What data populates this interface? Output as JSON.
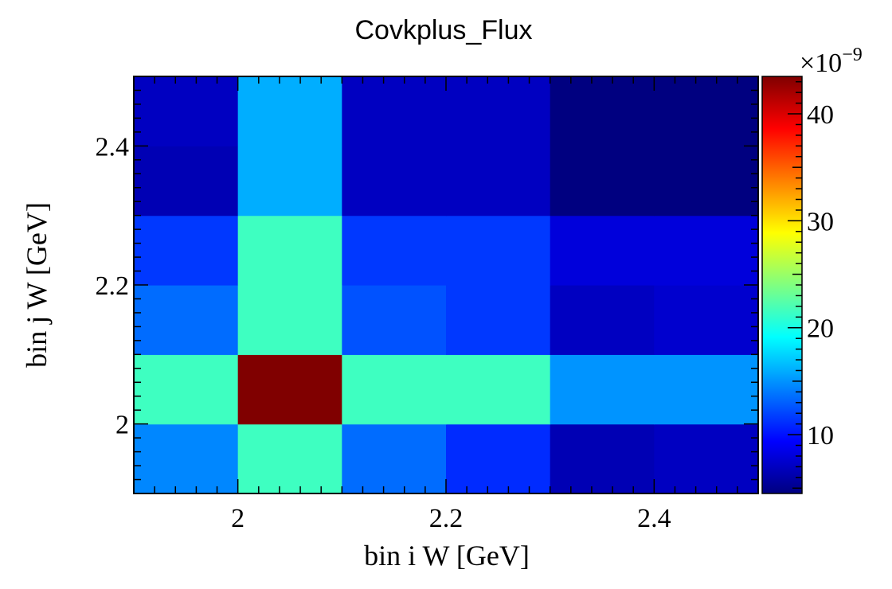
{
  "chart_data": {
    "type": "heatmap",
    "title": "Covkplus_Flux",
    "xlabel": "bin i W [GeV]",
    "ylabel": "bin j W [GeV]",
    "x_edges": [
      1.9,
      2.0,
      2.1,
      2.2,
      2.3,
      2.4,
      2.5
    ],
    "y_edges": [
      1.9,
      2.0,
      2.1,
      2.2,
      2.3,
      2.4,
      2.5
    ],
    "xlim": [
      1.9,
      2.5
    ],
    "ylim": [
      1.9,
      2.5
    ],
    "x_ticks": [
      2.0,
      2.2,
      2.4
    ],
    "x_tick_labels": [
      "2",
      "2.2",
      "2.4"
    ],
    "y_ticks": [
      2.0,
      2.2,
      2.4
    ],
    "y_tick_labels": [
      "2",
      "2.2",
      "2.4"
    ],
    "z_multiplier_text": "×10",
    "z_multiplier_exp": "−9",
    "zlim": [
      4.5,
      43.5
    ],
    "z_ticks": [
      10,
      20,
      30,
      40
    ],
    "z_tick_labels": [
      "10",
      "20",
      "30",
      "40"
    ],
    "colormap": [
      "#000080",
      "#0000ff",
      "#0080ff",
      "#00ffff",
      "#80ff80",
      "#ffff00",
      "#ff8000",
      "#ff0000",
      "#800000"
    ],
    "values": [
      [
        14.5,
        21.5,
        13.5,
        11.0,
        6.5,
        7.0
      ],
      [
        21.5,
        43.5,
        21.5,
        21.5,
        15.0,
        15.0
      ],
      [
        13.5,
        21.5,
        12.5,
        11.5,
        7.0,
        7.5
      ],
      [
        11.5,
        21.5,
        11.5,
        11.5,
        8.0,
        8.0
      ],
      [
        6.5,
        16.0,
        7.0,
        7.0,
        4.5,
        4.5
      ],
      [
        7.0,
        16.0,
        7.0,
        7.0,
        4.5,
        4.5
      ]
    ]
  }
}
